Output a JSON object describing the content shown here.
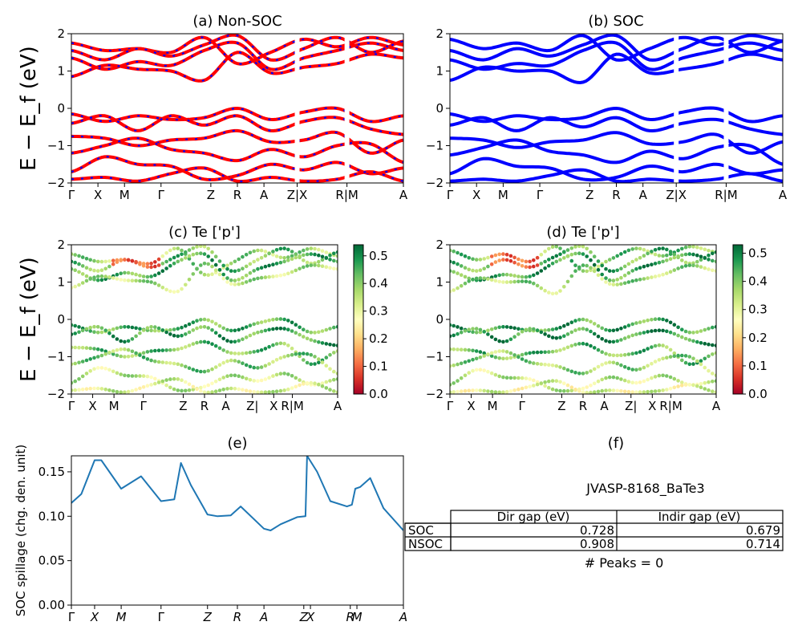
{
  "figure": {
    "ylabel_top": "E − E_f (eV)",
    "ylabel_mid": "E − E_f (eV)"
  },
  "band_ticks": [
    "Γ",
    "X",
    "M",
    "Γ",
    "Z",
    "R",
    "A",
    "Z|X",
    "R|M",
    "A"
  ],
  "band_ticks_spillage": [
    "Γ",
    "X",
    "M",
    "Γ",
    "Z",
    "R",
    "A",
    "Z",
    "X",
    "R",
    "M",
    "A"
  ],
  "panels": {
    "a": {
      "title": "(a) Non-SOC"
    },
    "b": {
      "title": "(b) SOC"
    },
    "c": {
      "title": "(c)  Te ['p']"
    },
    "d": {
      "title": "(d) Te ['p']"
    },
    "e": {
      "title": "(e)"
    },
    "f": {
      "title": "(f)"
    }
  },
  "colors": {
    "nsoc_line": "#ff0000",
    "nsoc_dash": "#0000ff",
    "soc_line": "#0000ff",
    "spillage_line": "#1f77b4",
    "cmap": [
      "#a50026",
      "#d73027",
      "#f46d43",
      "#fdae61",
      "#fee08b",
      "#ffffbf",
      "#d9ef8b",
      "#a6d96a",
      "#66bd63",
      "#1a9850",
      "#006837"
    ]
  },
  "colorbar_c": {
    "ticks": [
      "0.0",
      "0.1",
      "0.2",
      "0.3",
      "0.4",
      "0.5"
    ],
    "max": 0.54
  },
  "colorbar_d": {
    "ticks": [
      "0.0",
      "0.1",
      "0.2",
      "0.3",
      "0.4",
      "0.5"
    ],
    "max": 0.53
  },
  "table": {
    "jid": "JVASP-8168_BaTe3",
    "headers": [
      "Dir gap (eV)",
      "Indir gap (eV)"
    ],
    "rows": [
      {
        "label": "SOC",
        "dir": "0.728",
        "indir": "0.679"
      },
      {
        "label": "NSOC",
        "dir": "0.908",
        "indir": "0.714"
      }
    ],
    "peaks": "# Peaks = 0"
  },
  "chart_data": [
    {
      "type": "line",
      "panel": "a",
      "title": "(a) Non-SOC",
      "ylabel": "E − E_f (eV)",
      "ylim": [
        -2,
        2
      ],
      "yticks": [
        -2,
        -1,
        0,
        1,
        2
      ],
      "xlim": [
        0,
        10
      ],
      "xticks_pos": [
        0,
        0.8,
        1.6,
        2.7,
        4.2,
        5.0,
        5.8,
        6.8,
        8.3,
        10
      ],
      "breaks": [
        6.8,
        8.3
      ],
      "bands": [
        [
          1.75,
          1.55,
          1.6,
          1.5,
          1.9,
          1.2,
          1.5,
          1.85,
          1.65,
          1.9,
          1.7
        ],
        [
          1.55,
          1.3,
          1.6,
          1.4,
          1.7,
          1.95,
          1.3,
          1.6,
          1.9,
          1.5,
          1.8
        ],
        [
          1.35,
          1.05,
          1.25,
          1.15,
          1.55,
          1.75,
          1.05,
          1.35,
          1.55,
          1.75,
          1.55
        ],
        [
          0.85,
          1.15,
          1.05,
          1.0,
          0.75,
          1.5,
          0.95,
          1.1,
          1.2,
          1.45,
          1.35
        ],
        [
          -0.15,
          -0.35,
          -0.2,
          -0.3,
          -0.25,
          0.0,
          -0.3,
          -0.1,
          0.0,
          -0.35,
          -0.2
        ],
        [
          -0.4,
          -0.2,
          -0.6,
          -0.2,
          -0.45,
          -0.2,
          -0.6,
          -0.35,
          -0.25,
          -0.55,
          -0.7
        ],
        [
          -0.75,
          -0.8,
          -1.0,
          -0.85,
          -0.8,
          -0.6,
          -0.9,
          -0.85,
          -0.65,
          -1.2,
          -0.85
        ],
        [
          -1.2,
          -1.0,
          -0.8,
          -1.1,
          -1.2,
          -1.4,
          -1.1,
          -1.3,
          -1.0,
          -0.95,
          -1.45
        ],
        [
          -1.7,
          -1.3,
          -1.5,
          -1.55,
          -1.9,
          -1.8,
          -1.5,
          -1.65,
          -1.45,
          -1.75,
          -1.6
        ],
        [
          -1.9,
          -1.85,
          -1.95,
          -1.75,
          -1.6,
          -1.95,
          -1.85,
          -1.95,
          -1.9,
          -1.7,
          -1.95
        ]
      ]
    },
    {
      "type": "line",
      "panel": "b",
      "title": "(b) SOC",
      "ylim": [
        -2,
        2
      ],
      "yticks": [
        -2,
        -1,
        0,
        1,
        2
      ],
      "xlim": [
        0,
        10
      ],
      "xticks_pos": [
        0,
        0.8,
        1.6,
        2.7,
        4.2,
        5.0,
        5.8,
        6.8,
        8.3,
        10
      ],
      "breaks": [
        6.8,
        8.3
      ],
      "bands": [
        [
          1.85,
          1.6,
          1.75,
          1.55,
          1.95,
          1.3,
          1.6,
          1.9,
          1.7,
          1.95,
          1.8
        ],
        [
          1.55,
          1.3,
          1.6,
          1.4,
          1.7,
          1.95,
          1.3,
          1.6,
          1.9,
          1.5,
          1.8
        ],
        [
          1.3,
          1.05,
          1.2,
          1.15,
          1.55,
          1.75,
          1.05,
          1.35,
          1.55,
          1.75,
          1.55
        ],
        [
          0.75,
          1.1,
          1.0,
          1.0,
          0.7,
          1.45,
          0.95,
          1.05,
          1.2,
          1.45,
          1.3
        ],
        [
          -0.15,
          -0.35,
          -0.2,
          -0.3,
          -0.25,
          0.0,
          -0.3,
          -0.1,
          0.0,
          -0.35,
          -0.2
        ],
        [
          -0.45,
          -0.25,
          -0.6,
          -0.25,
          -0.5,
          -0.25,
          -0.6,
          -0.4,
          -0.3,
          -0.55,
          -0.7
        ],
        [
          -0.8,
          -0.85,
          -1.05,
          -0.9,
          -0.85,
          -0.65,
          -0.95,
          -0.9,
          -0.7,
          -1.2,
          -0.9
        ],
        [
          -1.25,
          -1.05,
          -0.85,
          -1.15,
          -1.25,
          -1.45,
          -1.15,
          -1.35,
          -1.05,
          -1.0,
          -1.5
        ],
        [
          -1.75,
          -1.35,
          -1.55,
          -1.6,
          -1.9,
          -1.85,
          -1.55,
          -1.7,
          -1.5,
          -1.75,
          -1.65
        ],
        [
          -1.95,
          -1.9,
          -1.95,
          -1.8,
          -1.65,
          -1.95,
          -1.9,
          -1.95,
          -1.9,
          -1.75,
          -1.95
        ]
      ]
    },
    {
      "type": "scatter",
      "panel": "c",
      "title": "(c)  Te ['p']",
      "ylabel": "E − E_f (eV)",
      "ylim": [
        -2,
        2
      ],
      "yticks": [
        -2,
        -1,
        0,
        1,
        2
      ],
      "xlim": [
        0,
        10
      ],
      "xticks_pos": [
        0,
        0.8,
        1.6,
        2.7,
        4.2,
        5.0,
        5.8,
        6.8,
        7.6,
        8.3,
        10
      ],
      "colorbar_range": [
        0.0,
        0.54
      ],
      "bands": [
        [
          1.75,
          1.55,
          1.6,
          1.5,
          1.9,
          1.2,
          1.5,
          1.85,
          1.65,
          1.9,
          1.7
        ],
        [
          1.55,
          1.3,
          1.6,
          1.4,
          1.7,
          1.95,
          1.3,
          1.6,
          1.9,
          1.5,
          1.8
        ],
        [
          1.35,
          1.05,
          1.25,
          1.15,
          1.55,
          1.75,
          1.05,
          1.35,
          1.55,
          1.75,
          1.55
        ],
        [
          0.85,
          1.15,
          1.05,
          1.0,
          0.75,
          1.5,
          0.95,
          1.1,
          1.2,
          1.45,
          1.35
        ],
        [
          -0.15,
          -0.35,
          -0.2,
          -0.3,
          -0.25,
          0.0,
          -0.3,
          -0.1,
          0.0,
          -0.35,
          -0.2
        ],
        [
          -0.4,
          -0.2,
          -0.6,
          -0.2,
          -0.45,
          -0.2,
          -0.6,
          -0.35,
          -0.25,
          -0.55,
          -0.7
        ],
        [
          -0.75,
          -0.8,
          -1.0,
          -0.85,
          -0.8,
          -0.6,
          -0.9,
          -0.85,
          -0.65,
          -1.2,
          -0.85
        ],
        [
          -1.2,
          -1.0,
          -0.8,
          -1.1,
          -1.2,
          -1.4,
          -1.1,
          -1.3,
          -1.0,
          -0.95,
          -1.45
        ],
        [
          -1.7,
          -1.3,
          -1.5,
          -1.55,
          -1.9,
          -1.8,
          -1.5,
          -1.65,
          -1.45,
          -1.75,
          -1.6
        ],
        [
          -1.9,
          -1.85,
          -1.95,
          -1.75,
          -1.6,
          -1.95,
          -1.85,
          -1.95,
          -1.9,
          -1.7,
          -1.95
        ]
      ],
      "band_weights": [
        0.38,
        0.42,
        0.45,
        0.36,
        0.44,
        0.46,
        0.42,
        0.4,
        0.34,
        0.32
      ]
    },
    {
      "type": "scatter",
      "panel": "d",
      "title": "(d) Te ['p']",
      "ylim": [
        -2,
        2
      ],
      "yticks": [
        -2,
        -1,
        0,
        1,
        2
      ],
      "xlim": [
        0,
        10
      ],
      "xticks_pos": [
        0,
        0.8,
        1.6,
        2.7,
        4.2,
        5.0,
        5.8,
        6.8,
        7.6,
        8.3,
        10
      ],
      "colorbar_range": [
        0.0,
        0.53
      ],
      "bands": [
        [
          1.85,
          1.6,
          1.75,
          1.55,
          1.95,
          1.3,
          1.6,
          1.9,
          1.7,
          1.95,
          1.8
        ],
        [
          1.55,
          1.3,
          1.6,
          1.4,
          1.7,
          1.95,
          1.3,
          1.6,
          1.9,
          1.5,
          1.8
        ],
        [
          1.3,
          1.05,
          1.2,
          1.15,
          1.55,
          1.75,
          1.05,
          1.35,
          1.55,
          1.75,
          1.55
        ],
        [
          0.75,
          1.1,
          1.0,
          1.0,
          0.7,
          1.45,
          0.95,
          1.05,
          1.2,
          1.45,
          1.3
        ],
        [
          -0.15,
          -0.35,
          -0.2,
          -0.3,
          -0.25,
          0.0,
          -0.3,
          -0.1,
          0.0,
          -0.35,
          -0.2
        ],
        [
          -0.45,
          -0.25,
          -0.6,
          -0.25,
          -0.5,
          -0.25,
          -0.6,
          -0.4,
          -0.3,
          -0.55,
          -0.7
        ],
        [
          -0.8,
          -0.85,
          -1.05,
          -0.9,
          -0.85,
          -0.65,
          -0.95,
          -0.9,
          -0.7,
          -1.2,
          -0.9
        ],
        [
          -1.25,
          -1.05,
          -0.85,
          -1.15,
          -1.25,
          -1.45,
          -1.15,
          -1.35,
          -1.05,
          -1.0,
          -1.5
        ],
        [
          -1.75,
          -1.35,
          -1.55,
          -1.6,
          -1.9,
          -1.85,
          -1.55,
          -1.7,
          -1.5,
          -1.75,
          -1.65
        ],
        [
          -1.95,
          -1.9,
          -1.95,
          -1.8,
          -1.65,
          -1.95,
          -1.9,
          -1.95,
          -1.9,
          -1.75,
          -1.95
        ]
      ],
      "band_weights": [
        0.4,
        0.43,
        0.45,
        0.37,
        0.45,
        0.47,
        0.42,
        0.38,
        0.33,
        0.3
      ]
    },
    {
      "type": "line",
      "panel": "e",
      "title": "(e)",
      "ylabel": "SOC spillage (chg. den. unit)",
      "ylim": [
        0.0,
        0.168
      ],
      "yticks": [
        "0.00",
        "0.05",
        "0.10",
        "0.15"
      ],
      "xlim": [
        0,
        10
      ],
      "xticks_pos": [
        0,
        0.7,
        1.5,
        2.7,
        4.1,
        5.0,
        5.8,
        7.0,
        7.2,
        8.4,
        8.6,
        10
      ],
      "x": [
        0,
        0.3,
        0.7,
        0.9,
        1.5,
        2.1,
        2.7,
        3.1,
        3.3,
        3.6,
        4.1,
        4.4,
        4.8,
        5.1,
        5.8,
        6.0,
        6.3,
        6.8,
        7.05,
        7.1,
        7.4,
        7.8,
        8.3,
        8.45,
        8.55,
        8.7,
        9.0,
        9.4,
        10
      ],
      "y": [
        0.115,
        0.125,
        0.163,
        0.163,
        0.131,
        0.145,
        0.117,
        0.119,
        0.16,
        0.135,
        0.102,
        0.1,
        0.101,
        0.111,
        0.086,
        0.084,
        0.091,
        0.099,
        0.1,
        0.168,
        0.15,
        0.117,
        0.111,
        0.113,
        0.131,
        0.133,
        0.143,
        0.109,
        0.084
      ]
    }
  ]
}
